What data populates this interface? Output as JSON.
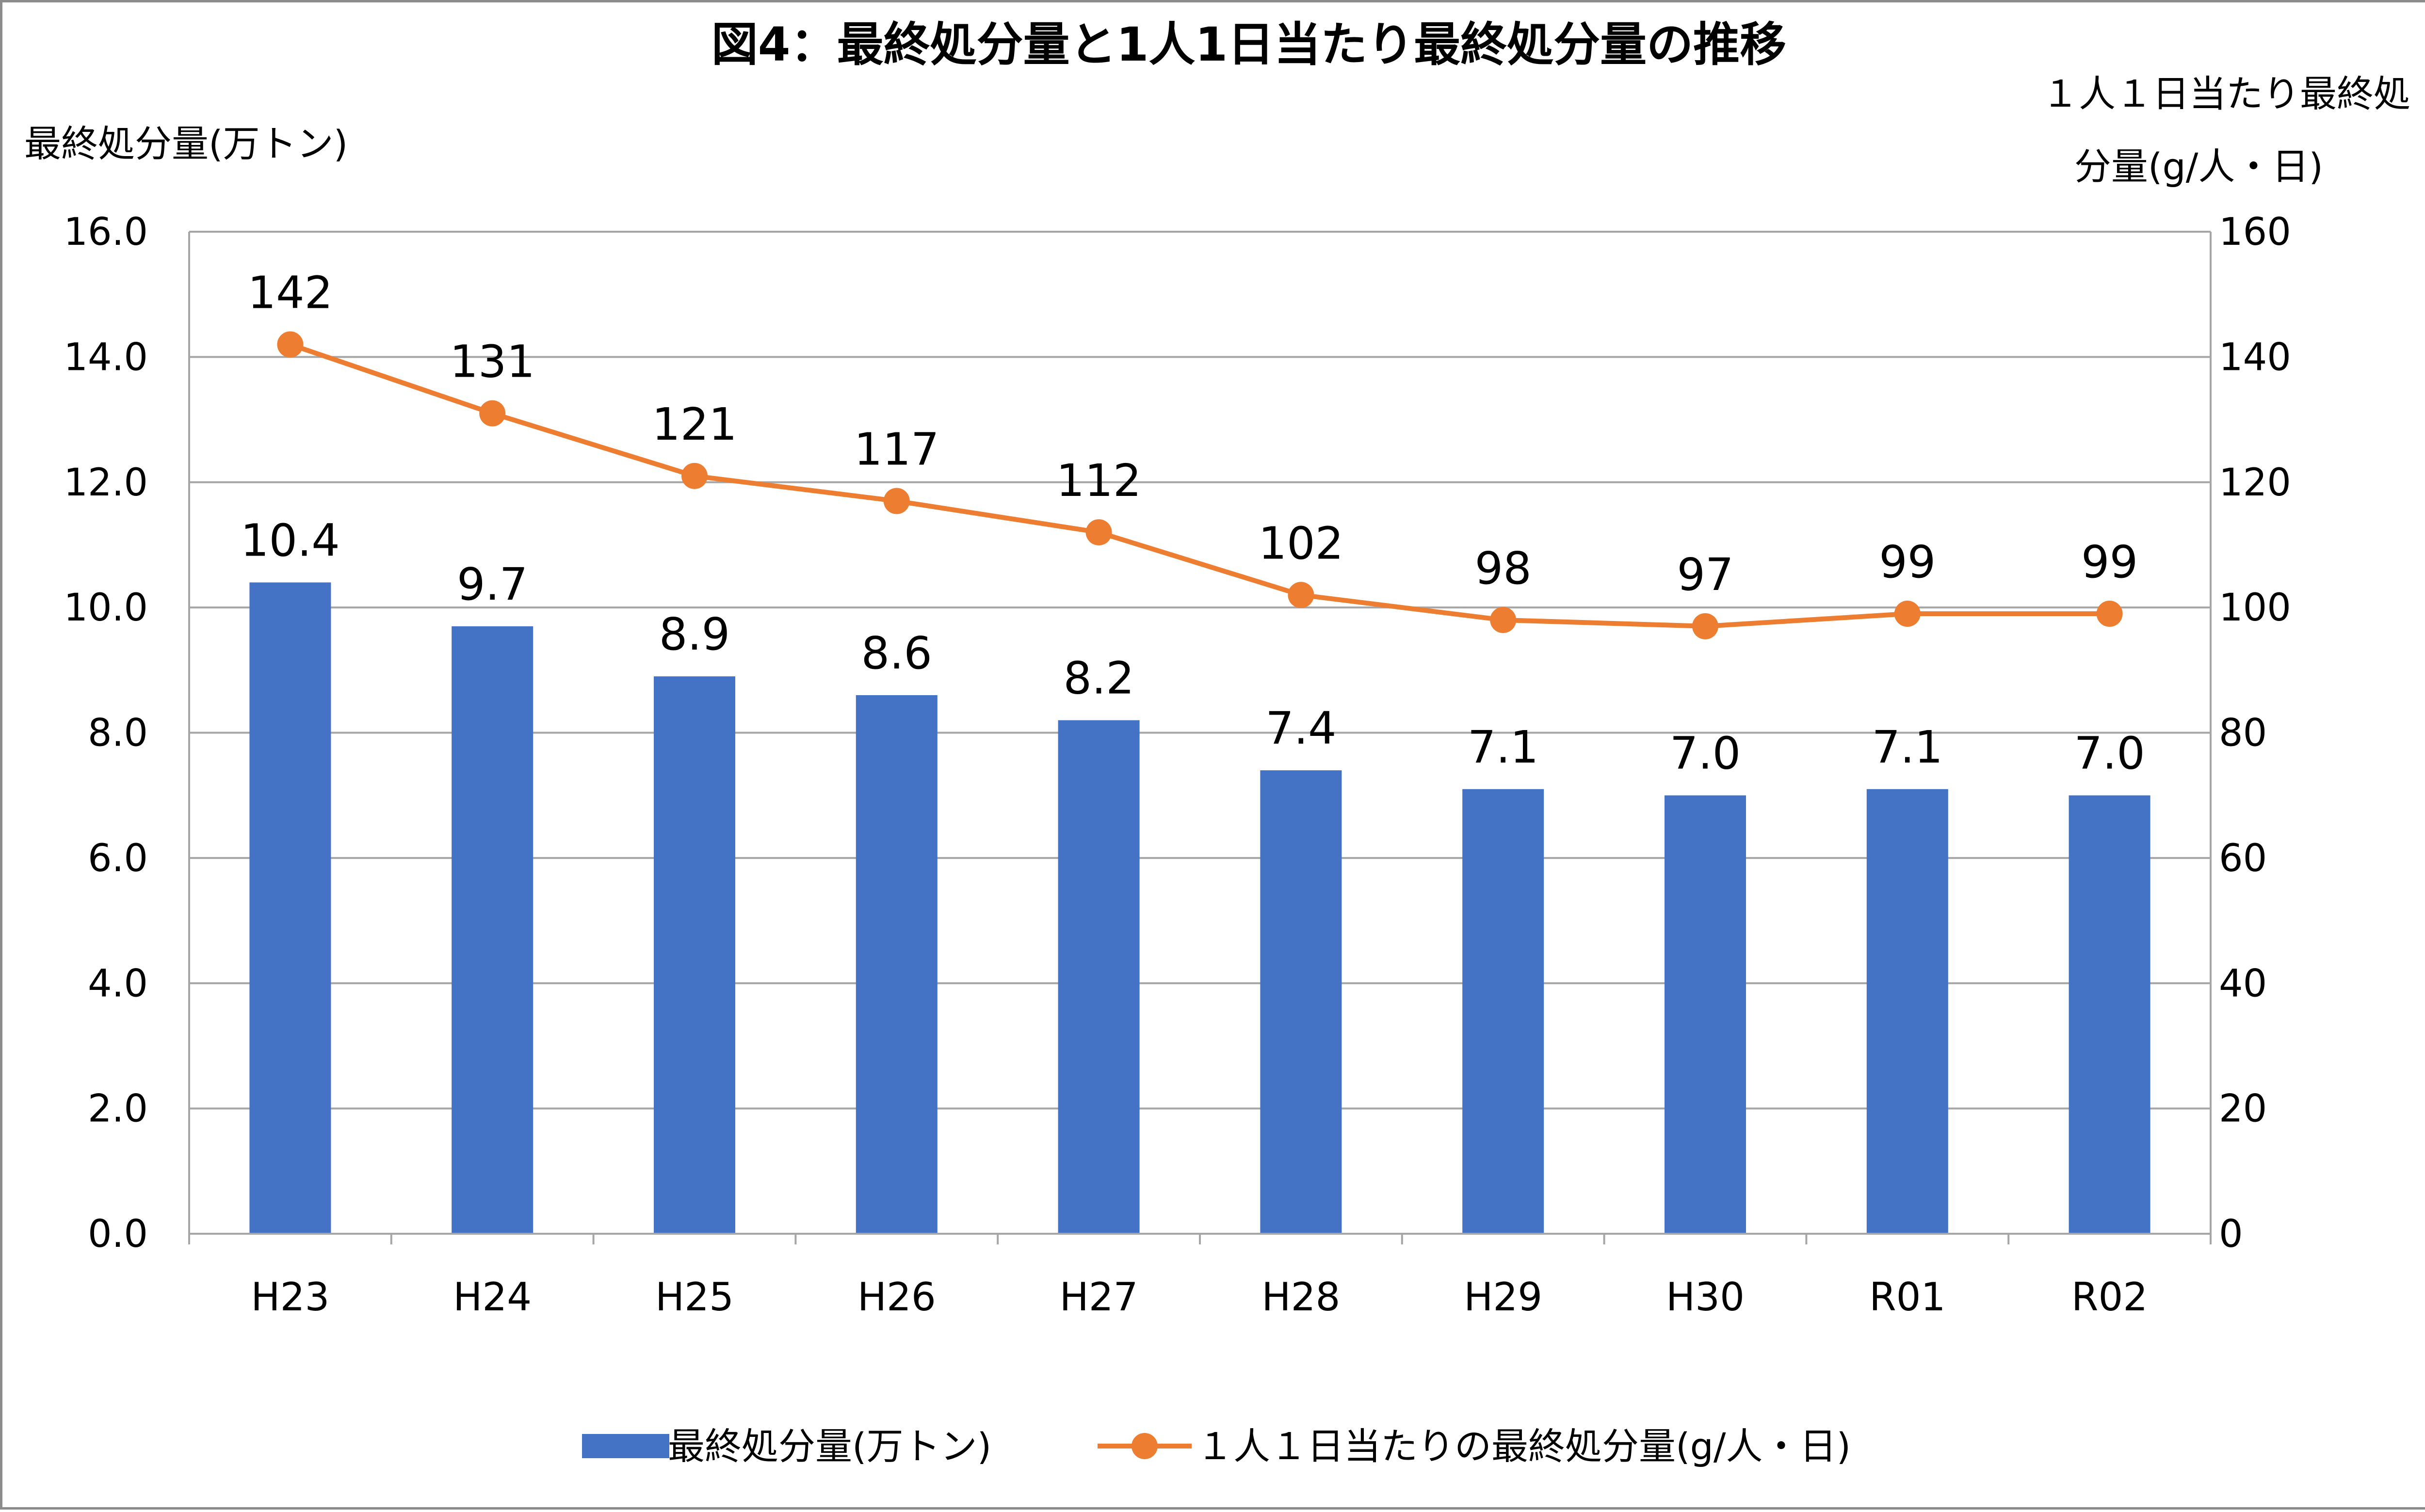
{
  "chart_data": {
    "type": "bar",
    "title": "図4：最終処分量と1人1日当たり最終処分量の推移",
    "categories": [
      "H23",
      "H24",
      "H25",
      "H26",
      "H27",
      "H28",
      "H29",
      "H30",
      "R01",
      "R02"
    ],
    "y_left": {
      "label": "最終処分量(万トン)",
      "range": [
        0,
        16
      ],
      "ticks": [
        "0.0",
        "2.0",
        "4.0",
        "6.0",
        "8.0",
        "10.0",
        "12.0",
        "14.0",
        "16.0"
      ]
    },
    "y_right": {
      "label_lines": [
        "１人１日当たり最終処",
        "分量(g/人・日)"
      ],
      "range": [
        0,
        160
      ],
      "ticks": [
        "0",
        "20",
        "40",
        "60",
        "80",
        "100",
        "120",
        "140",
        "160"
      ]
    },
    "grid": true,
    "legend_position": "bottom",
    "series": [
      {
        "name": "最終処分量(万トン)",
        "type": "bar",
        "axis": "left",
        "color": "#4472C4",
        "values": [
          10.4,
          9.7,
          8.9,
          8.6,
          8.2,
          7.4,
          7.1,
          7.0,
          7.1,
          7.0
        ],
        "labels": [
          "10.4",
          "9.7",
          "8.9",
          "8.6",
          "8.2",
          "7.4",
          "7.1",
          "7.0",
          "7.1",
          "7.0"
        ]
      },
      {
        "name": "１人１日当たりの最終処分量(g/人・日)",
        "type": "line",
        "axis": "right",
        "color": "#ED7D31",
        "values": [
          142,
          131,
          121,
          117,
          112,
          102,
          98,
          97,
          99,
          99
        ],
        "labels": [
          "142",
          "131",
          "121",
          "117",
          "112",
          "102",
          "98",
          "97",
          "99",
          "99"
        ]
      }
    ]
  }
}
